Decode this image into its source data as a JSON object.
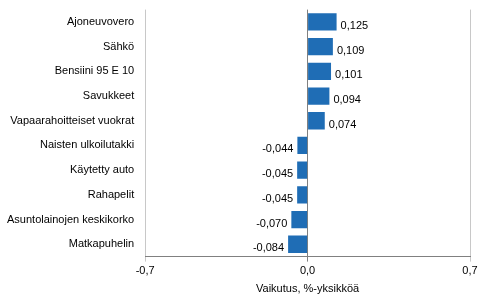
{
  "chart_data": {
    "type": "bar",
    "orientation": "horizontal",
    "categories": [
      "Ajoneuvovero",
      "Sähkö",
      "Bensiini 95 E 10",
      "Savukkeet",
      "Vapaarahoitteiset vuokrat",
      "Naisten ulkoilutakki",
      "Käytetty auto",
      "Rahapelit",
      "Asuntolainojen keskikorko",
      "Matkapuhelin"
    ],
    "values": [
      0.125,
      0.109,
      0.101,
      0.094,
      0.074,
      -0.044,
      -0.045,
      -0.045,
      -0.07,
      -0.084
    ],
    "value_labels": [
      "0,125",
      "0,109",
      "0,101",
      "0,094",
      "0,074",
      "-0,044",
      "-0,045",
      "-0,045",
      "-0,070",
      "-0,084"
    ],
    "color": "#1f6db5",
    "x_label": "Vaikutus, %-yksikköä",
    "xlim": [
      -0.7,
      0.7
    ],
    "xticks": [
      {
        "value": -0.7,
        "label": "-0,7"
      },
      {
        "value": 0,
        "label": "0,0"
      },
      {
        "value": 0.7,
        "label": "0,7"
      }
    ],
    "grid": true,
    "data_labels": true
  }
}
